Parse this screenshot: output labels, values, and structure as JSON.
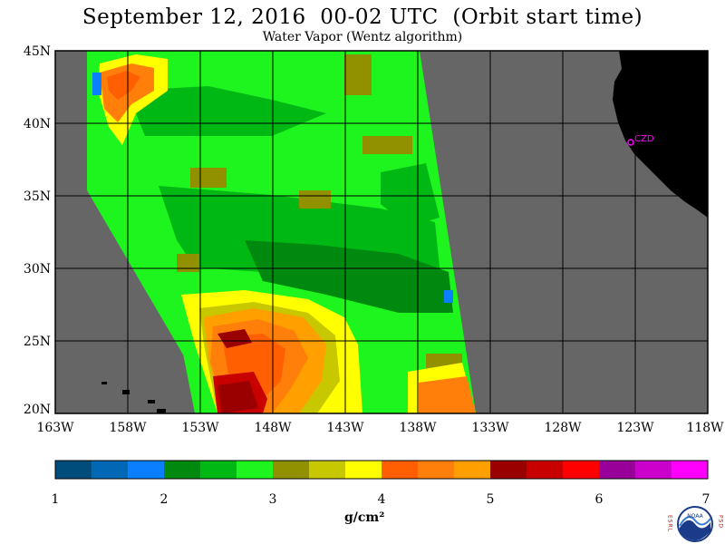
{
  "header": {
    "title": "September 12, 2016  00-02 UTC  (Orbit start time)",
    "subtitle": "Water Vapor (Wentz algorithm)"
  },
  "map": {
    "lat_labels": [
      "45N",
      "40N",
      "35N",
      "30N",
      "25N",
      "20N"
    ],
    "lon_labels": [
      "163W",
      "158W",
      "153W",
      "148W",
      "143W",
      "138W",
      "133W",
      "128W",
      "123W",
      "118W"
    ],
    "station_label": "CZD",
    "colors": {
      "no_data": "#666666",
      "land": "#000000",
      "station": "#ff00ff"
    }
  },
  "colorbar": {
    "ticks": [
      "1",
      "2",
      "3",
      "4",
      "5",
      "6",
      "7"
    ],
    "units": "g/cm²",
    "colors": [
      "#004c7a",
      "#0068b5",
      "#0a7fff",
      "#00890f",
      "#00b814",
      "#1ef51e",
      "#919100",
      "#c8c800",
      "#ffff00",
      "#ff5f00",
      "#ff7f0a",
      "#ff9f00",
      "#9b0000",
      "#c80000",
      "#ff0000",
      "#990099",
      "#cc00cc",
      "#ff00ff"
    ]
  },
  "logo": {
    "left_letters": "ESRL",
    "right_letters": "PSD",
    "text": "NOAA"
  }
}
